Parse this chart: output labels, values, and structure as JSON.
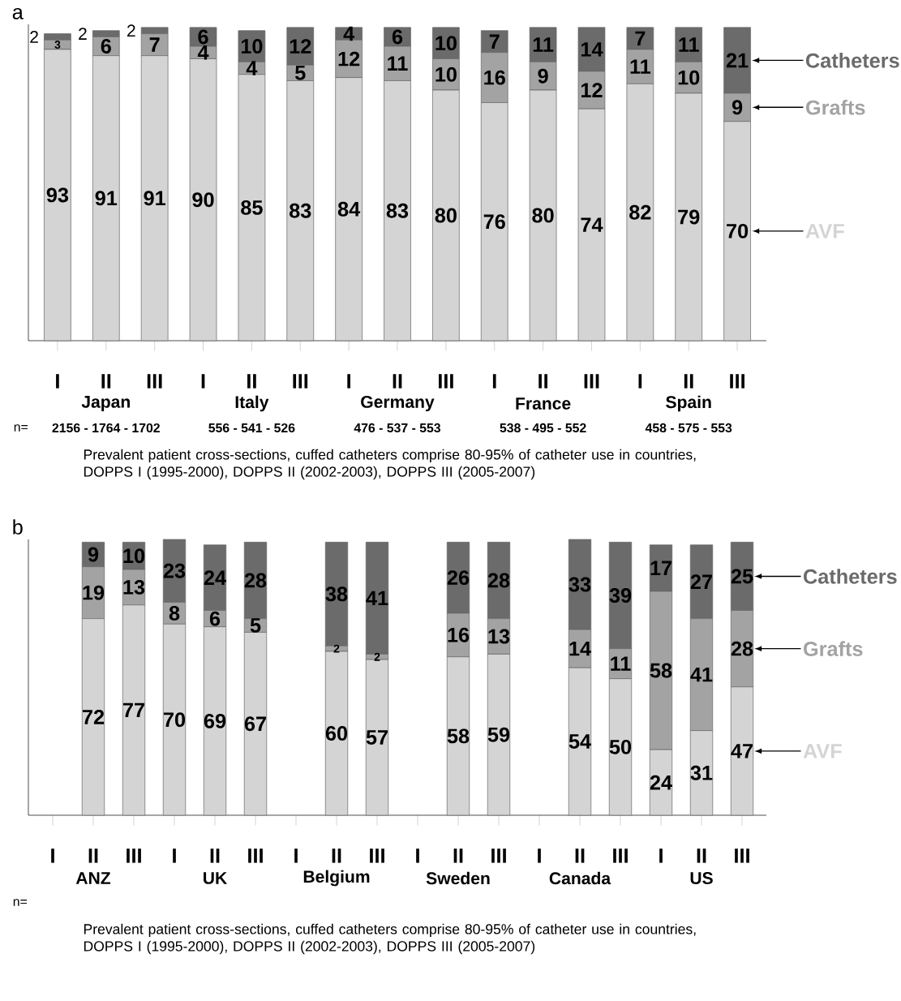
{
  "chart_data": [
    {
      "type": "bar",
      "title": "a",
      "stacked": true,
      "data_labels": true,
      "tick_labels": "x",
      "ylim": [
        0,
        101
      ],
      "categories": [
        "I",
        "II",
        "III",
        "I",
        "II",
        "III",
        "I",
        "II",
        "III",
        "I",
        "II",
        "III",
        "I",
        "II",
        "III"
      ],
      "series": [
        {
          "name": "AVF",
          "color": "#d4d4d4",
          "values": [
            93,
            91,
            91,
            90,
            85,
            83,
            84,
            83,
            80,
            76,
            80,
            74,
            82,
            79,
            70
          ]
        },
        {
          "name": "Grafts",
          "color": "#a3a3a3",
          "values": [
            3,
            6,
            7,
            4,
            4,
            5,
            12,
            11,
            10,
            16,
            9,
            12,
            11,
            10,
            9
          ]
        },
        {
          "name": "Catheters",
          "color": "#6b6b6b",
          "values": [
            2,
            2,
            2,
            6,
            10,
            12,
            4,
            6,
            10,
            7,
            11,
            14,
            7,
            11,
            21
          ]
        }
      ],
      "annotations": [
        "Japan",
        "Italy",
        "Germany",
        "France",
        "Spain",
        "n=",
        "2156 - 1764 - 1702",
        "556 - 541 - 526",
        "476 - 537 - 553",
        "538 - 495 - 552",
        "458 - 575 - 553",
        "Prevalent patient cross-sections, cuffed catheters comprise 80-95% of catheter use in countries, DOPPS I (1995-2000), DOPPS II (2002-2003), DOPPS III (2005-2007)"
      ]
    },
    {
      "type": "bar",
      "title": "b",
      "stacked": true,
      "data_labels": true,
      "tick_labels": "x",
      "ylim": [
        0,
        101
      ],
      "categories": [
        "I",
        "II",
        "III",
        "I",
        "II",
        "III",
        "I",
        "II",
        "III",
        "I",
        "II",
        "III",
        "I",
        "II",
        "III",
        "I",
        "II",
        "III"
      ],
      "series": [
        {
          "name": "AVF",
          "color": "#d4d4d4",
          "values": [
            null,
            72,
            77,
            70,
            69,
            67,
            null,
            60,
            57,
            null,
            58,
            59,
            null,
            54,
            50,
            24,
            31,
            47
          ]
        },
        {
          "name": "Grafts",
          "color": "#a3a3a3",
          "values": [
            null,
            19,
            13,
            8,
            6,
            5,
            null,
            2,
            2,
            null,
            16,
            13,
            null,
            14,
            11,
            58,
            41,
            28
          ]
        },
        {
          "name": "Catheters",
          "color": "#6b6b6b",
          "values": [
            null,
            9,
            10,
            23,
            24,
            28,
            null,
            38,
            41,
            null,
            26,
            28,
            null,
            33,
            39,
            17,
            27,
            25
          ]
        }
      ],
      "annotations": [
        "ANZ",
        "UK",
        "Belgium",
        "Sweden",
        "Canada",
        "US",
        "n=",
        "Prevalent patient cross-sections, cuffed catheters comprise 80-95% of catheter use in countries, DOPPS I (1995-2000), DOPPS II (2002-2003), DOPPS III (2005-2007)"
      ]
    }
  ]
}
